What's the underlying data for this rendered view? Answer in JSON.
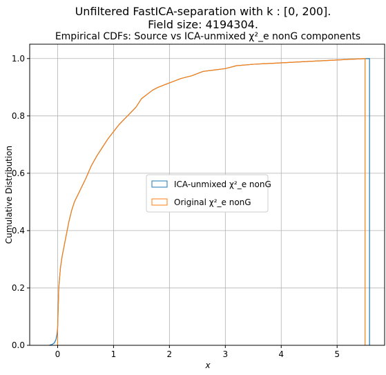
{
  "chart_data": {
    "type": "line",
    "suptitle_line1": "Unfiltered FastICA-separation with k : [0, 200].",
    "suptitle_line2": "Field size: 4194304.",
    "title": "Empirical CDFs: Source vs ICA-unmixed χ²_e nonG components",
    "xlabel": "x",
    "ylabel": "Cumulative Distribution",
    "xlim": [
      -0.5,
      5.85
    ],
    "ylim": [
      0,
      1.05
    ],
    "xticks": [
      0,
      1,
      2,
      3,
      4,
      5
    ],
    "yticks": [
      0.0,
      0.2,
      0.4,
      0.6,
      0.8,
      1.0
    ],
    "xtick_labels": [
      "0",
      "1",
      "2",
      "3",
      "4",
      "5"
    ],
    "ytick_labels": [
      "0.0",
      "0.2",
      "0.4",
      "0.6",
      "0.8",
      "1.0"
    ],
    "grid": true,
    "legend_position": "center",
    "series": [
      {
        "name": "ICA-unmixed χ²_e nonG",
        "color": "#1f77b4",
        "x": [
          -0.15,
          -0.1,
          -0.06,
          -0.03,
          -0.01,
          0.0,
          0.02,
          0.05,
          0.08,
          0.1,
          0.15,
          0.2,
          0.25,
          0.3,
          0.35,
          0.4,
          0.5,
          0.6,
          0.7,
          0.8,
          0.9,
          1.0,
          1.1,
          1.2,
          1.3,
          1.4,
          1.5,
          1.6,
          1.7,
          1.8,
          2.0,
          2.2,
          2.4,
          2.6,
          2.8,
          3.0,
          3.2,
          3.5,
          4.0,
          4.5,
          5.0,
          5.3,
          5.58,
          5.58
        ],
        "y": [
          0.0,
          0.003,
          0.008,
          0.02,
          0.04,
          0.06,
          0.2,
          0.27,
          0.31,
          0.33,
          0.38,
          0.43,
          0.47,
          0.5,
          0.52,
          0.54,
          0.58,
          0.625,
          0.66,
          0.69,
          0.72,
          0.745,
          0.77,
          0.79,
          0.81,
          0.83,
          0.86,
          0.875,
          0.89,
          0.9,
          0.915,
          0.93,
          0.94,
          0.955,
          0.96,
          0.965,
          0.975,
          0.98,
          0.985,
          0.99,
          0.995,
          0.998,
          1.0,
          0.0
        ]
      },
      {
        "name": "Original χ²_e nonG",
        "color": "#ff7f0e",
        "x": [
          0.0,
          0.0,
          0.02,
          0.05,
          0.08,
          0.1,
          0.15,
          0.2,
          0.25,
          0.3,
          0.35,
          0.4,
          0.5,
          0.6,
          0.7,
          0.8,
          0.9,
          1.0,
          1.1,
          1.2,
          1.3,
          1.4,
          1.5,
          1.6,
          1.7,
          1.8,
          2.0,
          2.2,
          2.4,
          2.6,
          2.8,
          3.0,
          3.2,
          3.5,
          4.0,
          4.5,
          5.0,
          5.3,
          5.5,
          5.5
        ],
        "y": [
          0.0,
          0.06,
          0.2,
          0.27,
          0.31,
          0.33,
          0.38,
          0.43,
          0.47,
          0.5,
          0.52,
          0.54,
          0.58,
          0.625,
          0.66,
          0.69,
          0.72,
          0.745,
          0.77,
          0.79,
          0.81,
          0.83,
          0.86,
          0.875,
          0.89,
          0.9,
          0.915,
          0.93,
          0.94,
          0.955,
          0.96,
          0.965,
          0.975,
          0.98,
          0.985,
          0.99,
          0.995,
          0.998,
          1.0,
          0.0
        ]
      }
    ]
  }
}
